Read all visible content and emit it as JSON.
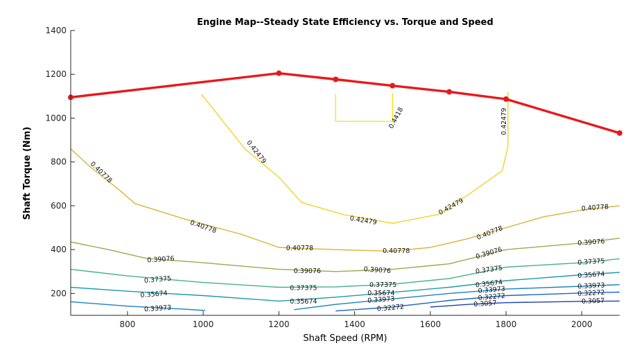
{
  "chart_data": {
    "type": "line",
    "title": "Engine Map--Steady State Efficiency vs. Torque and Speed",
    "xlabel": "Shaft Speed (RPM)",
    "ylabel": "Shaft Torque (Nm)",
    "xlim": [
      650,
      2100
    ],
    "ylim": [
      100,
      1400
    ],
    "xticks": [
      800,
      1000,
      1200,
      1400,
      1600,
      1800,
      2000
    ],
    "yticks": [
      200,
      400,
      600,
      800,
      1000,
      1200,
      1400
    ],
    "grid": false,
    "max_torque": {
      "color": "#e8191b",
      "x": [
        650,
        1200,
        1350,
        1500,
        1650,
        1800,
        2100
      ],
      "y": [
        1095,
        1205,
        1177,
        1148,
        1120,
        1087,
        932
      ]
    },
    "contours": [
      {
        "level": "0.4418",
        "color": "#ffe01a",
        "segments": [
          [
            [
              1350,
              1110
            ],
            [
              1350,
              985
            ],
            [
              1500,
              985
            ],
            [
              1500,
              1115
            ]
          ]
        ],
        "labels": [
          {
            "x": 1510,
            "y": 1000,
            "angle": -62
          }
        ]
      },
      {
        "level": "0.42479",
        "color": "#f2d22a",
        "segments": [
          [
            [
              995,
              1110
            ],
            [
              1110,
              860
            ],
            [
              1200,
              730
            ],
            [
              1260,
              615
            ],
            [
              1370,
              560
            ],
            [
              1500,
              520
            ],
            [
              1620,
              560
            ],
            [
              1700,
              650
            ],
            [
              1790,
              760
            ],
            [
              1805,
              870
            ],
            [
              1805,
              1120
            ]
          ]
        ],
        "labels": [
          {
            "x": 1140,
            "y": 845,
            "angle": 52
          },
          {
            "x": 1423,
            "y": 532,
            "angle": 9
          },
          {
            "x": 1655,
            "y": 595,
            "angle": -29
          },
          {
            "x": 1795,
            "y": 985,
            "angle": -90
          }
        ]
      },
      {
        "level": "0.40778",
        "color": "#d6b535",
        "segments": [
          [
            [
              650,
              860
            ],
            [
              700,
              780
            ],
            [
              780,
              670
            ],
            [
              820,
              610
            ],
            [
              950,
              540
            ],
            [
              1100,
              470
            ],
            [
              1200,
              410
            ],
            [
              1350,
              400
            ],
            [
              1500,
              393
            ],
            [
              1600,
              410
            ],
            [
              1700,
              450
            ],
            [
              1800,
              500
            ],
            [
              1900,
              550
            ],
            [
              2000,
              580
            ],
            [
              2100,
              600
            ]
          ]
        ],
        "labels": [
          {
            "x": 730,
            "y": 752,
            "angle": 44
          },
          {
            "x": 1000,
            "y": 503,
            "angle": 19
          },
          {
            "x": 1255,
            "y": 405,
            "angle": 0
          },
          {
            "x": 1510,
            "y": 393,
            "angle": 0
          },
          {
            "x": 1757,
            "y": 475,
            "angle": -22
          },
          {
            "x": 2035,
            "y": 590,
            "angle": -4
          }
        ]
      },
      {
        "level": "0.39076",
        "color": "#9ea84a",
        "segments": [
          [
            [
              650,
              435
            ],
            [
              750,
              400
            ],
            [
              850,
              360
            ],
            [
              1000,
              340
            ],
            [
              1200,
              310
            ],
            [
              1350,
              300
            ],
            [
              1500,
              310
            ],
            [
              1650,
              335
            ],
            [
              1800,
              400
            ],
            [
              2000,
              430
            ],
            [
              2100,
              452
            ]
          ]
        ],
        "labels": [
          {
            "x": 888,
            "y": 354,
            "angle": -4
          },
          {
            "x": 1275,
            "y": 301,
            "angle": 0
          },
          {
            "x": 1460,
            "y": 305,
            "angle": 4
          },
          {
            "x": 1755,
            "y": 383,
            "angle": -17
          },
          {
            "x": 2025,
            "y": 432,
            "angle": -4
          }
        ]
      },
      {
        "level": "0.37375",
        "color": "#43b08c",
        "segments": [
          [
            [
              650,
              310
            ],
            [
              800,
              280
            ],
            [
              1000,
              250
            ],
            [
              1200,
              228
            ],
            [
              1350,
              230
            ],
            [
              1500,
              242
            ],
            [
              1650,
              268
            ],
            [
              1800,
              320
            ],
            [
              2000,
              340
            ],
            [
              2100,
              358
            ]
          ]
        ],
        "labels": [
          {
            "x": 880,
            "y": 262,
            "angle": -5
          },
          {
            "x": 1265,
            "y": 224,
            "angle": 0
          },
          {
            "x": 1475,
            "y": 238,
            "angle": 0
          },
          {
            "x": 1755,
            "y": 307,
            "angle": -8
          },
          {
            "x": 2025,
            "y": 343,
            "angle": -4
          }
        ]
      },
      {
        "level": "0.35674",
        "color": "#1c9ba8",
        "segments": [
          [
            [
              650,
              228
            ],
            [
              800,
              210
            ],
            [
              1000,
              190
            ],
            [
              1200,
              165
            ],
            [
              1350,
              183
            ],
            [
              1500,
              205
            ],
            [
              1650,
              228
            ],
            [
              1800,
              258
            ],
            [
              2000,
              285
            ],
            [
              2100,
              296
            ]
          ]
        ],
        "labels": [
          {
            "x": 870,
            "y": 195,
            "angle": -5
          },
          {
            "x": 1265,
            "y": 162,
            "angle": 0
          },
          {
            "x": 1470,
            "y": 200,
            "angle": 0
          },
          {
            "x": 1755,
            "y": 243,
            "angle": -7
          },
          {
            "x": 2025,
            "y": 283,
            "angle": -4
          }
        ]
      },
      {
        "level": "0.33973",
        "color": "#1a80c4",
        "segments": [
          [
            [
              650,
              162
            ],
            [
              800,
              142
            ],
            [
              950,
              128
            ],
            [
              1005,
              122
            ]
          ],
          [
            [
              1240,
              126
            ],
            [
              1350,
              150
            ],
            [
              1500,
              175
            ],
            [
              1650,
              200
            ],
            [
              1800,
              220
            ],
            [
              2000,
              233
            ],
            [
              2100,
              240
            ]
          ]
        ],
        "labels": [
          {
            "x": 880,
            "y": 130,
            "angle": -4
          },
          {
            "x": 1470,
            "y": 170,
            "angle": -4
          },
          {
            "x": 1762,
            "y": 215,
            "angle": -5
          },
          {
            "x": 2025,
            "y": 233,
            "angle": -3
          }
        ]
      },
      {
        "level": "0.32272",
        "color": "#1a64c4",
        "segments": [
          [
            [
              1350,
              120
            ],
            [
              1500,
              138
            ],
            [
              1650,
              168
            ],
            [
              1800,
              190
            ],
            [
              2000,
              202
            ],
            [
              2100,
              206
            ]
          ]
        ],
        "labels": [
          {
            "x": 1495,
            "y": 133,
            "angle": -5
          },
          {
            "x": 1762,
            "y": 183,
            "angle": -5
          },
          {
            "x": 2025,
            "y": 200,
            "angle": -3
          }
        ]
      },
      {
        "level": "0.3057",
        "color": "#1c3fb0",
        "segments": [
          [
            [
              1600,
              138
            ],
            [
              1700,
              150
            ],
            [
              1800,
              158
            ],
            [
              2000,
              164
            ],
            [
              2100,
              165
            ]
          ]
        ],
        "labels": [
          {
            "x": 1745,
            "y": 152,
            "angle": -4
          },
          {
            "x": 2030,
            "y": 164,
            "angle": -2
          }
        ]
      }
    ]
  }
}
